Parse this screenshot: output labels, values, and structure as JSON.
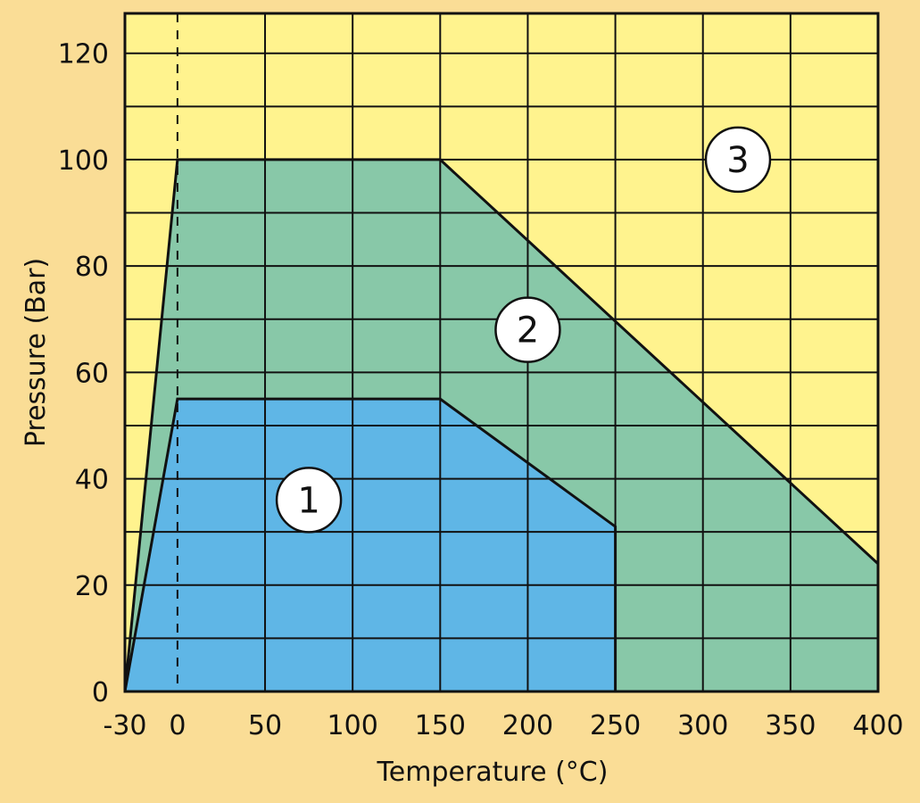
{
  "chart_data": {
    "type": "area",
    "title": "",
    "xlabel": "Temperature (°C)",
    "ylabel": "Pressure (Bar)",
    "xlim": [
      -30,
      400
    ],
    "ylim": [
      0,
      127.5
    ],
    "x_ticks": [
      -30,
      0,
      50,
      100,
      150,
      200,
      250,
      300,
      350,
      400
    ],
    "x_tick_labels": [
      "-30",
      "0",
      "50",
      "100",
      "150",
      "200",
      "250",
      "300",
      "350",
      "400"
    ],
    "y_ticks": [
      0,
      20,
      40,
      60,
      80,
      100,
      120
    ],
    "y_tick_labels": [
      "0",
      "20",
      "40",
      "60",
      "80",
      "100",
      "120"
    ],
    "grid": {
      "x_step": 50,
      "y_step": 10,
      "on": true
    },
    "reference_line": {
      "x": 0,
      "style": "dashed"
    },
    "series": [
      {
        "name": "2",
        "color": "#88c8a8",
        "points": [
          [
            -30,
            0
          ],
          [
            0,
            100
          ],
          [
            150,
            100
          ],
          [
            400,
            24
          ],
          [
            400,
            0
          ]
        ],
        "label_at": [
          200,
          68
        ]
      },
      {
        "name": "1",
        "color": "#5fb6e6",
        "points": [
          [
            -30,
            0
          ],
          [
            0,
            55
          ],
          [
            150,
            55
          ],
          [
            250,
            31
          ],
          [
            250,
            0
          ]
        ],
        "label_at": [
          75,
          36
        ]
      }
    ],
    "region_3": {
      "name": "3",
      "color": "#fff38e",
      "label_at": [
        320,
        100
      ]
    },
    "background": "#fadd96"
  }
}
